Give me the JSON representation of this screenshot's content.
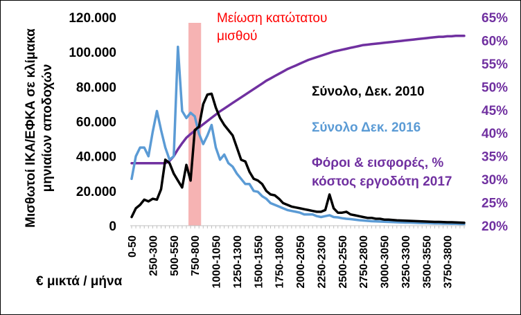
{
  "chart_data": {
    "type": "line",
    "xlabel": "€ μικτά / μήνα",
    "ylabel_lines": [
      "Μισθωτοί ΙΚΑ/ΕΦΚΑ σε κλίμακα",
      "μηνιαίων αποδοχών"
    ],
    "y_left": {
      "min": 0,
      "max": 120000,
      "ticks": [
        "0",
        "20.000",
        "40.000",
        "60.000",
        "80.000",
        "100.000",
        "120.000"
      ]
    },
    "y_right": {
      "min": 20,
      "max": 65,
      "ticks": [
        "20%",
        "25%",
        "30%",
        "35%",
        "40%",
        "45%",
        "50%",
        "55%",
        "60%",
        "65%"
      ]
    },
    "x_tick_labels": [
      "0-50",
      "250-300",
      "500-550",
      "750-800",
      "1000-1050",
      "1250-1300",
      "1500-1550",
      "1750-1800",
      "2000-2050",
      "2250-2300",
      "2500-2550",
      "2750-2800",
      "3000-3050",
      "3250-3300",
      "3500-3550",
      "3750-3800"
    ],
    "x_tick_every": 5,
    "annotation": {
      "text_lines": [
        "Μείωση κατώτατου",
        "μισθού"
      ],
      "band_x_from": 13.5,
      "band_x_to": 16.5
    },
    "series": [
      {
        "name": "Σύνολο, Δεκ. 2010",
        "axis": "left",
        "color": "#000000",
        "values": [
          5000,
          10000,
          12000,
          15000,
          14000,
          15500,
          15000,
          21000,
          38000,
          36000,
          30000,
          26000,
          22000,
          35000,
          26000,
          55000,
          57000,
          70000,
          75500,
          76000,
          68000,
          62000,
          58000,
          55000,
          52000,
          45000,
          38000,
          37000,
          31000,
          27000,
          26000,
          24000,
          20000,
          18000,
          17500,
          15500,
          13000,
          12000,
          11000,
          10500,
          10000,
          9500,
          9000,
          8500,
          8000,
          8000,
          9000,
          18000,
          10000,
          7500,
          7500,
          8000,
          6500,
          6000,
          5500,
          5000,
          4500,
          4500,
          4000,
          4000,
          3500,
          3500,
          3300,
          3100,
          3000,
          2900,
          2800,
          2700,
          2600,
          2500,
          2400,
          2300,
          2200,
          2200,
          2100,
          2000,
          2000,
          1900,
          1800,
          1700
        ]
      },
      {
        "name": "Σύνολο  Δεκ. 2016",
        "axis": "left",
        "color": "#5b9bd5",
        "values": [
          27000,
          40000,
          45000,
          45000,
          40000,
          54000,
          66000,
          55000,
          45000,
          38000,
          40000,
          103000,
          66000,
          62000,
          65000,
          63000,
          53000,
          47000,
          52000,
          58000,
          45000,
          38000,
          41000,
          36000,
          34000,
          30000,
          27000,
          24000,
          24000,
          20000,
          19500,
          17000,
          15500,
          13000,
          12000,
          11000,
          10000,
          9000,
          8500,
          8000,
          7500,
          6500,
          6500,
          6500,
          5500,
          5000,
          5500,
          6000,
          5000,
          4800,
          4300,
          4000,
          3800,
          3500,
          3200,
          3000,
          2800,
          2600,
          2500,
          2400,
          2300,
          2200,
          2100,
          2000,
          1900,
          1800,
          1800,
          1700,
          1600,
          1500,
          1500,
          1400,
          1300,
          1300,
          1200,
          1200,
          1100,
          1100,
          1000,
          1000
        ]
      },
      {
        "name_lines": [
          "Φόροι & εισφορές, %",
          "κόστος εργοδότη 2017"
        ],
        "axis": "right",
        "color": "#7030a0",
        "values": [
          33.5,
          33.5,
          33.5,
          33.5,
          33.5,
          33.5,
          33.5,
          33.5,
          33.5,
          34,
          35,
          36.5,
          37.8,
          39,
          39.8,
          40.5,
          41.2,
          41.9,
          42.6,
          43.3,
          44,
          44.7,
          45.3,
          45.9,
          46.5,
          47.1,
          47.7,
          48.3,
          48.9,
          49.5,
          50.1,
          50.7,
          51.3,
          51.8,
          52.3,
          52.8,
          53.3,
          53.8,
          54.2,
          54.6,
          55,
          55.4,
          55.8,
          56.1,
          56.4,
          56.7,
          57,
          57.3,
          57.6,
          57.8,
          58,
          58.2,
          58.4,
          58.6,
          58.8,
          59,
          59.1,
          59.2,
          59.3,
          59.4,
          59.5,
          59.6,
          59.7,
          59.8,
          59.9,
          60,
          60.1,
          60.2,
          60.3,
          60.4,
          60.5,
          60.6,
          60.7,
          60.8,
          60.8,
          60.9,
          60.9,
          61,
          61,
          61
        ]
      }
    ]
  }
}
